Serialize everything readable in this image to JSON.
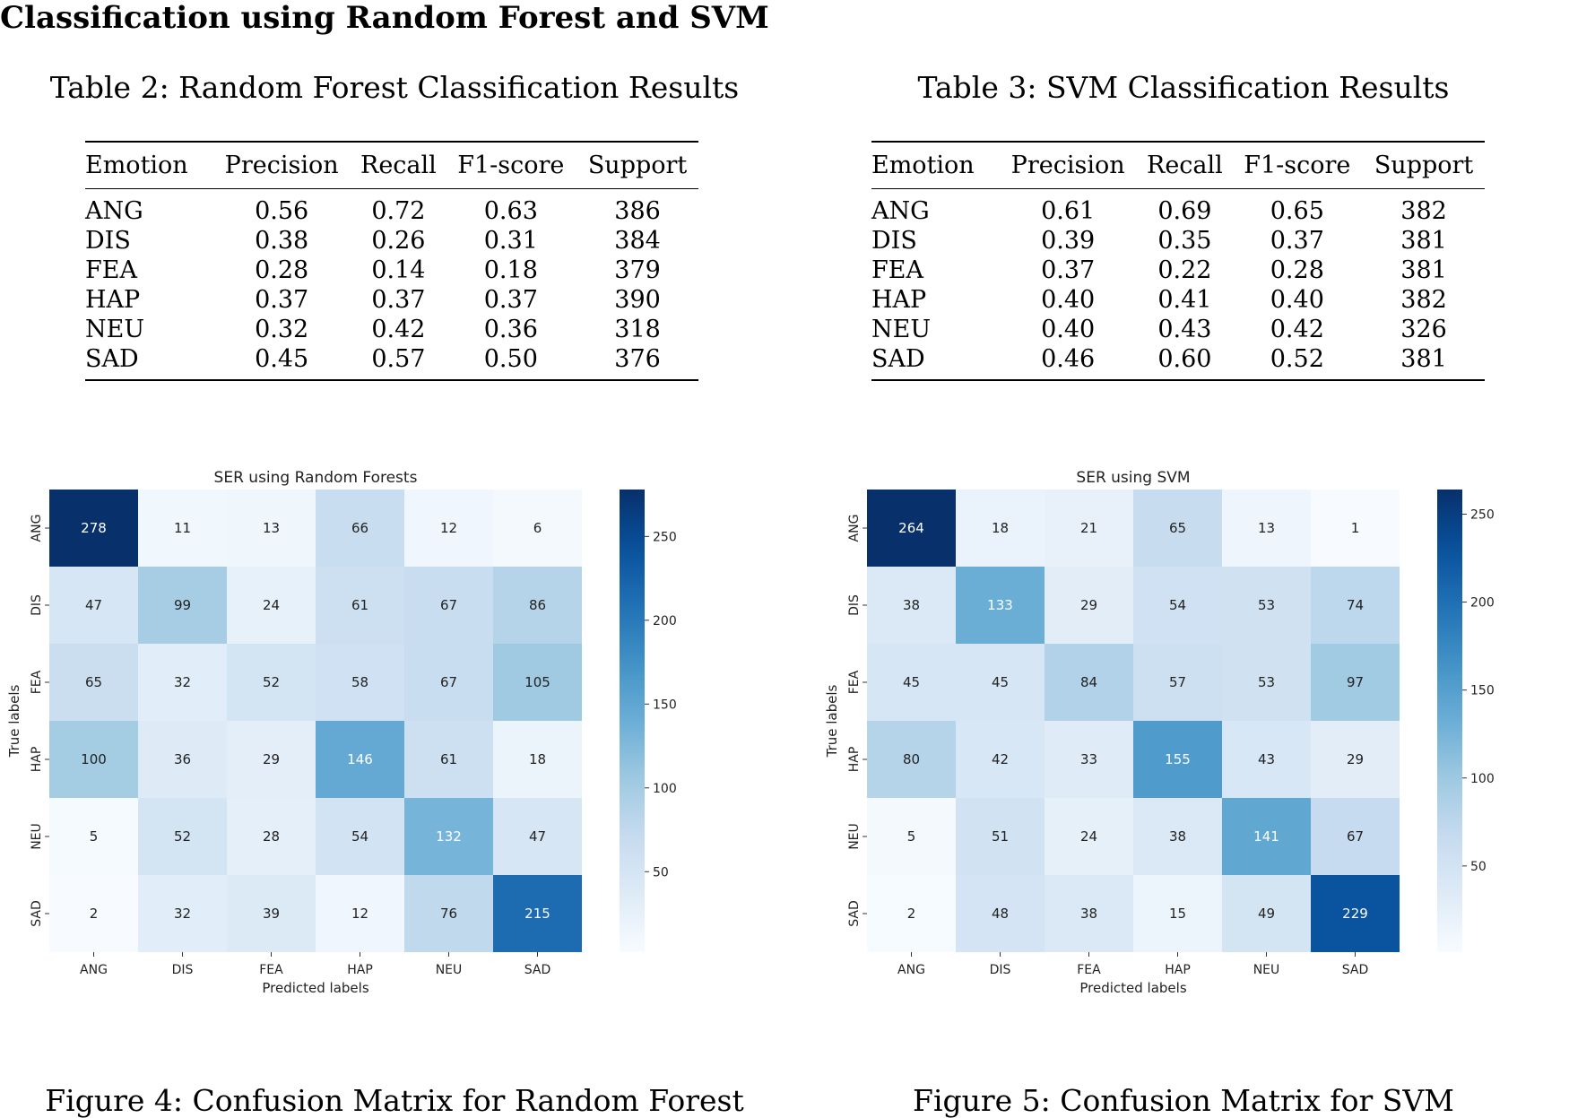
{
  "section_heading": "Classification using Random Forest and SVM",
  "tables": {
    "rf": {
      "caption": "Table 2: Random Forest Classification Results",
      "headers": [
        "Emotion",
        "Precision",
        "Recall",
        "F1-score",
        "Support"
      ],
      "rows": [
        [
          "ANG",
          "0.56",
          "0.72",
          "0.63",
          "386"
        ],
        [
          "DIS",
          "0.38",
          "0.26",
          "0.31",
          "384"
        ],
        [
          "FEA",
          "0.28",
          "0.14",
          "0.18",
          "379"
        ],
        [
          "HAP",
          "0.37",
          "0.37",
          "0.37",
          "390"
        ],
        [
          "NEU",
          "0.32",
          "0.42",
          "0.36",
          "318"
        ],
        [
          "SAD",
          "0.45",
          "0.57",
          "0.50",
          "376"
        ]
      ]
    },
    "svm": {
      "caption": "Table 3: SVM Classification Results",
      "headers": [
        "Emotion",
        "Precision",
        "Recall",
        "F1-score",
        "Support"
      ],
      "rows": [
        [
          "ANG",
          "0.61",
          "0.69",
          "0.65",
          "382"
        ],
        [
          "DIS",
          "0.39",
          "0.35",
          "0.37",
          "381"
        ],
        [
          "FEA",
          "0.37",
          "0.22",
          "0.28",
          "381"
        ],
        [
          "HAP",
          "0.40",
          "0.41",
          "0.40",
          "382"
        ],
        [
          "NEU",
          "0.40",
          "0.43",
          "0.42",
          "326"
        ],
        [
          "SAD",
          "0.46",
          "0.60",
          "0.52",
          "381"
        ]
      ]
    }
  },
  "figures": {
    "rf_caption": "Figure 4: Confusion Matrix for Random Forest",
    "svm_caption": "Figure 5: Confusion Matrix for SVM"
  },
  "chart_data": [
    {
      "type": "heatmap",
      "title": "SER using Random Forests",
      "xlabel": "Predicted labels",
      "ylabel": "True labels",
      "x_categories": [
        "ANG",
        "DIS",
        "FEA",
        "HAP",
        "NEU",
        "SAD"
      ],
      "y_categories": [
        "ANG",
        "DIS",
        "FEA",
        "HAP",
        "NEU",
        "SAD"
      ],
      "values": [
        [
          278,
          11,
          13,
          66,
          12,
          6
        ],
        [
          47,
          99,
          24,
          61,
          67,
          86
        ],
        [
          65,
          32,
          52,
          58,
          67,
          105
        ],
        [
          100,
          36,
          29,
          146,
          61,
          18
        ],
        [
          5,
          52,
          28,
          54,
          132,
          47
        ],
        [
          2,
          32,
          39,
          12,
          76,
          215
        ]
      ],
      "colorbar_ticks": [
        250,
        200,
        150,
        100,
        50
      ],
      "colorbar_range": [
        2,
        278
      ],
      "colormap": [
        "#f7fbff",
        "#deebf7",
        "#c6dbef",
        "#9ecae1",
        "#6baed6",
        "#4292c6",
        "#2171b5",
        "#08519c",
        "#08306b"
      ]
    },
    {
      "type": "heatmap",
      "title": "SER using SVM",
      "xlabel": "Predicted labels",
      "ylabel": "True labels",
      "x_categories": [
        "ANG",
        "DIS",
        "FEA",
        "HAP",
        "NEU",
        "SAD"
      ],
      "y_categories": [
        "ANG",
        "DIS",
        "FEA",
        "HAP",
        "NEU",
        "SAD"
      ],
      "values": [
        [
          264,
          18,
          21,
          65,
          13,
          1
        ],
        [
          38,
          133,
          29,
          54,
          53,
          74
        ],
        [
          45,
          45,
          84,
          57,
          53,
          97
        ],
        [
          80,
          42,
          33,
          155,
          43,
          29
        ],
        [
          5,
          51,
          24,
          38,
          141,
          67
        ],
        [
          2,
          48,
          38,
          15,
          49,
          229
        ]
      ],
      "colorbar_ticks": [
        250,
        200,
        150,
        100,
        50
      ],
      "colorbar_range": [
        1,
        264
      ],
      "colormap": [
        "#f7fbff",
        "#deebf7",
        "#c6dbef",
        "#9ecae1",
        "#6baed6",
        "#4292c6",
        "#2171b5",
        "#08519c",
        "#08306b"
      ]
    }
  ]
}
